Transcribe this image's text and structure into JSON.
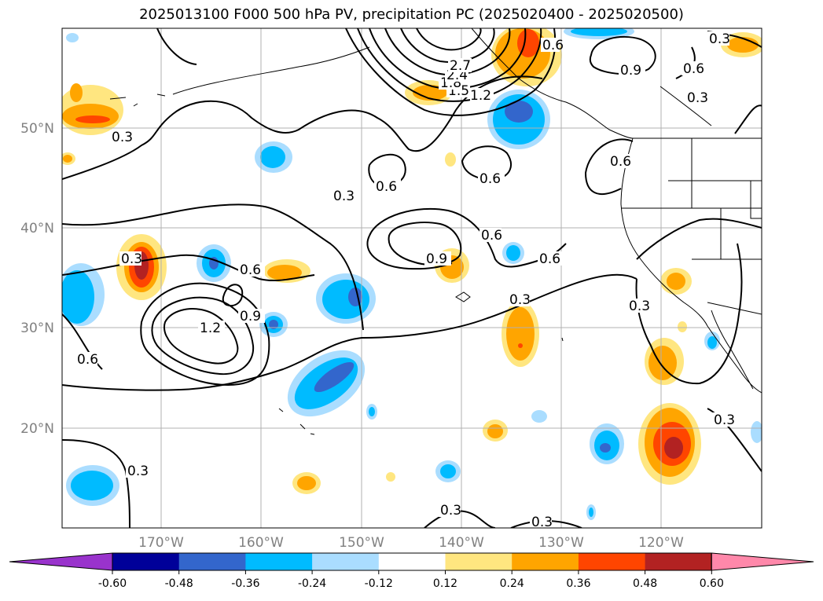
{
  "title": "2025013100 F000 500 hPa PV, precipitation PC (2025020400 - 2025020500)",
  "lat_labels": [
    "50°N",
    "40°N",
    "30°N",
    "20°N"
  ],
  "lon_labels": [
    "170°W",
    "160°W",
    "150°W",
    "140°W",
    "130°W",
    "120°W"
  ],
  "contour_labels": [
    "0.3",
    "0.6",
    "0.9",
    "1.2",
    "1.5",
    "1.8",
    "2.4",
    "2.7"
  ],
  "colorbar": {
    "ticks": [
      "-0.60",
      "-0.48",
      "-0.36",
      "-0.24",
      "-0.12",
      "0.12",
      "0.24",
      "0.36",
      "0.48",
      "0.60"
    ],
    "colors": [
      "#9933cc",
      "#000099",
      "#3366cc",
      "#00bbff",
      "#aaddff",
      "#ffffff",
      "#ffe680",
      "#ffa500",
      "#ff4500",
      "#b22222",
      "#ff88aa"
    ]
  }
}
